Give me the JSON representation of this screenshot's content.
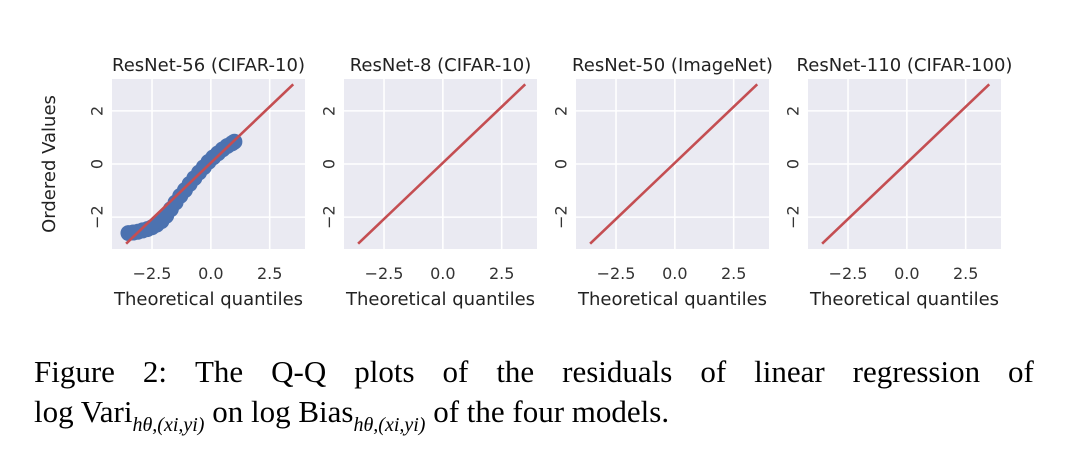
{
  "chart_data": [
    {
      "type": "scatter",
      "title": "ResNet-56 (CIFAR-10)",
      "xlabel": "Theoretical quantiles",
      "ylabel": "Ordered Values",
      "xlim": [
        -4.2,
        4.0
      ],
      "ylim": [
        -3.2,
        3.2
      ],
      "xticks": [
        -2.5,
        0.0,
        2.5
      ],
      "xtick_labels": [
        "−2.5",
        "0.0",
        "2.5"
      ],
      "yticks": [
        -2,
        0,
        2
      ],
      "ytick_labels": [
        "−2",
        "0",
        "2"
      ],
      "grid": true,
      "reference_line": {
        "x": [
          -3.6,
          3.5
        ],
        "y": [
          -3.0,
          3.0
        ]
      },
      "series": [
        {
          "points_x": [
            -3.5,
            -3.3,
            -3.1,
            -2.9,
            -2.7,
            -2.5,
            -2.3,
            -2.1,
            -1.9,
            -1.7,
            -1.5,
            -1.3,
            -1.1,
            -0.9,
            -0.7,
            -0.5,
            -0.3,
            -0.1,
            0.1,
            0.3,
            0.5,
            0.7,
            0.9,
            1.0
          ],
          "points_y": [
            -2.6,
            -2.58,
            -2.55,
            -2.5,
            -2.45,
            -2.38,
            -2.28,
            -2.15,
            -1.95,
            -1.7,
            -1.45,
            -1.2,
            -0.98,
            -0.75,
            -0.53,
            -0.32,
            -0.12,
            0.08,
            0.25,
            0.4,
            0.55,
            0.68,
            0.78,
            0.84
          ]
        }
      ]
    },
    {
      "type": "line",
      "title": "ResNet-8 (CIFAR-10)",
      "xlabel": "Theoretical quantiles",
      "xlim": [
        -4.2,
        4.0
      ],
      "ylim": [
        -3.2,
        3.2
      ],
      "xticks": [
        -2.5,
        0.0,
        2.5
      ],
      "xtick_labels": [
        "−2.5",
        "0.0",
        "2.5"
      ],
      "yticks": [
        -2,
        0,
        2
      ],
      "ytick_labels": [
        "−2",
        "0",
        "2"
      ],
      "grid": true,
      "reference_line": {
        "x": [
          -3.6,
          3.5
        ],
        "y": [
          -3.0,
          3.0
        ]
      }
    },
    {
      "type": "line",
      "title": "ResNet-50 (ImageNet)",
      "xlabel": "Theoretical quantiles",
      "xlim": [
        -4.2,
        4.0
      ],
      "ylim": [
        -3.2,
        3.2
      ],
      "xticks": [
        -2.5,
        0.0,
        2.5
      ],
      "xtick_labels": [
        "−2.5",
        "0.0",
        "2.5"
      ],
      "yticks": [
        -2,
        0,
        2
      ],
      "ytick_labels": [
        "−2",
        "0",
        "2"
      ],
      "grid": true,
      "reference_line": {
        "x": [
          -3.6,
          3.5
        ],
        "y": [
          -3.0,
          3.0
        ]
      }
    },
    {
      "type": "line",
      "title": "ResNet-110 (CIFAR-100)",
      "xlabel": "Theoretical quantiles",
      "xlim": [
        -4.2,
        4.0
      ],
      "ylim": [
        -3.2,
        3.2
      ],
      "xticks": [
        -2.5,
        0.0,
        2.5
      ],
      "xtick_labels": [
        "−2.5",
        "0.0",
        "2.5"
      ],
      "yticks": [
        -2,
        0,
        2
      ],
      "ytick_labels": [
        "−2",
        "0",
        "2"
      ],
      "grid": true,
      "reference_line": {
        "x": [
          -3.6,
          3.5
        ],
        "y": [
          -3.0,
          3.0
        ]
      }
    }
  ],
  "caption": {
    "line1_words": [
      "Figure",
      "2:",
      "The",
      "Q-Q",
      "plots",
      "of",
      "the",
      "residuals",
      "of",
      "linear",
      "regression",
      "of"
    ],
    "line2_prefix": "log Vari",
    "line2_sub1": "h",
    "line2_sub1_rest": "θ,(xi,yi)",
    "line2_mid": " on log Bias",
    "line2_sub2_rest": "θ,(xi,yi)",
    "line2_suffix": " of the four models."
  },
  "colors": {
    "panel_background": "#eaeaf2",
    "scatter_points": "#4c72b0",
    "reference_line": "#c44e52"
  }
}
